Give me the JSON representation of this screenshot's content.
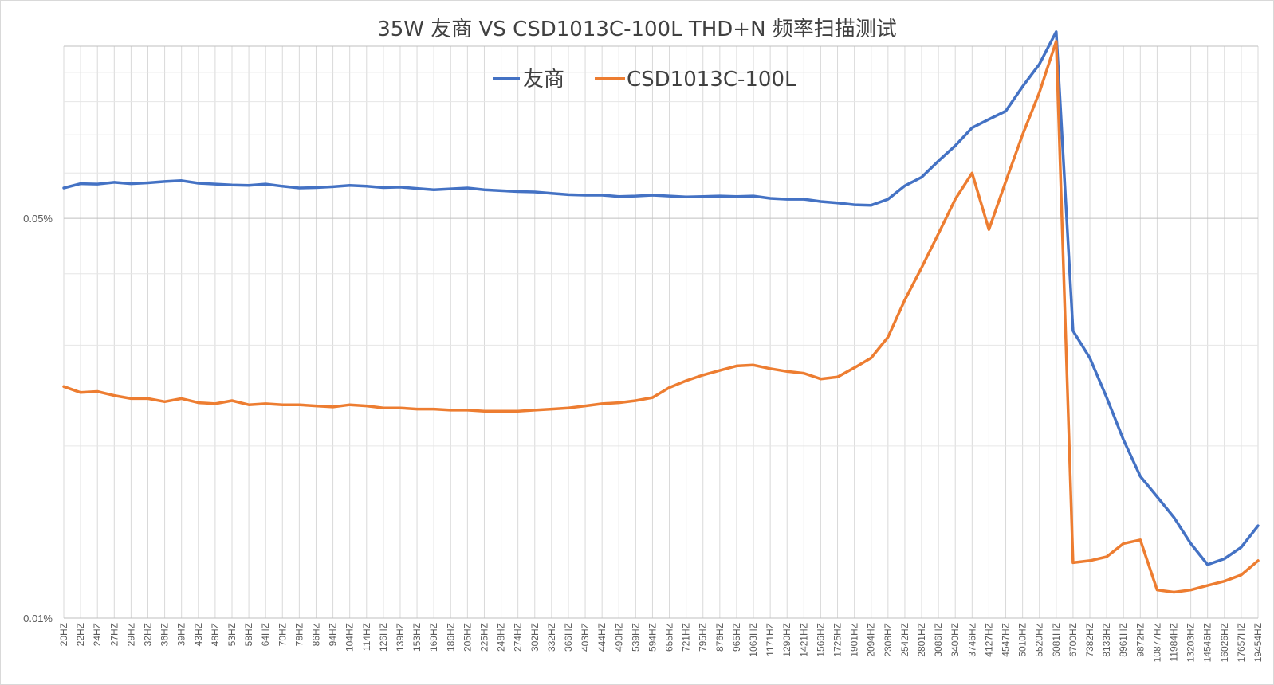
{
  "chart_data": {
    "type": "line",
    "title": "35W 友商 VS CSD1013C-100L THD+N 频率扫描测试",
    "xlabel": "",
    "ylabel": "",
    "y_scale": "log",
    "ylim": [
      0.01,
      0.1
    ],
    "y_ticks": [
      "0.05%",
      "0.01%"
    ],
    "grid": true,
    "legend_position": "top",
    "categories": [
      "20HZ",
      "22HZ",
      "24HZ",
      "27HZ",
      "29HZ",
      "32HZ",
      "36HZ",
      "39HZ",
      "43HZ",
      "48HZ",
      "53HZ",
      "58HZ",
      "64HZ",
      "70HZ",
      "78HZ",
      "86HZ",
      "94HZ",
      "104HZ",
      "114HZ",
      "126HZ",
      "139HZ",
      "153HZ",
      "169HZ",
      "186HZ",
      "205HZ",
      "225HZ",
      "248HZ",
      "274HZ",
      "302HZ",
      "332HZ",
      "366HZ",
      "403HZ",
      "444HZ",
      "490HZ",
      "539HZ",
      "594HZ",
      "655HZ",
      "721HZ",
      "795HZ",
      "876HZ",
      "965HZ",
      "1063HZ",
      "1171HZ",
      "1290HZ",
      "1421HZ",
      "1566HZ",
      "1725HZ",
      "1901HZ",
      "2094HZ",
      "2308HZ",
      "2542HZ",
      "2801HZ",
      "3086HZ",
      "3400HZ",
      "3746HZ",
      "4127HZ",
      "4547HZ",
      "5010HZ",
      "5520HZ",
      "6081HZ",
      "6700HZ",
      "7382HZ",
      "8133HZ",
      "8961HZ",
      "9872HZ",
      "10877HZ",
      "11984HZ",
      "13203HZ",
      "14546HZ",
      "16026HZ",
      "17657HZ",
      "19454HZ"
    ],
    "series": [
      {
        "name": "友商",
        "color": "#4472c4",
        "values": [
          0.0565,
          0.0575,
          0.0574,
          0.0578,
          0.0575,
          0.0577,
          0.058,
          0.0582,
          0.0576,
          0.0574,
          0.0572,
          0.0571,
          0.0574,
          0.0569,
          0.0565,
          0.0566,
          0.0568,
          0.0571,
          0.0569,
          0.0566,
          0.0567,
          0.0564,
          0.0561,
          0.0563,
          0.0565,
          0.0561,
          0.0559,
          0.0557,
          0.0556,
          0.0553,
          0.055,
          0.0549,
          0.0549,
          0.0546,
          0.0547,
          0.0549,
          0.0547,
          0.0545,
          0.0546,
          0.0547,
          0.0546,
          0.0547,
          0.0542,
          0.054,
          0.054,
          0.0535,
          0.0532,
          0.0528,
          0.0527,
          0.054,
          0.057,
          0.059,
          0.063,
          0.067,
          0.072,
          0.0745,
          0.077,
          0.085,
          0.093,
          0.106,
          0.0318,
          0.0285,
          0.0243,
          0.0205,
          0.0177,
          0.0163,
          0.015,
          0.0135,
          0.0124,
          0.0127,
          0.0133,
          0.0145
        ]
      },
      {
        "name": "CSD1013C-100L",
        "color": "#ed7d31",
        "values": [
          0.0254,
          0.0248,
          0.0249,
          0.0245,
          0.0242,
          0.0242,
          0.0239,
          0.0242,
          0.0238,
          0.0237,
          0.024,
          0.0236,
          0.0237,
          0.0236,
          0.0236,
          0.0235,
          0.0234,
          0.0236,
          0.0235,
          0.0233,
          0.0233,
          0.0232,
          0.0232,
          0.0231,
          0.0231,
          0.023,
          0.023,
          0.023,
          0.0231,
          0.0232,
          0.0233,
          0.0235,
          0.0237,
          0.0238,
          0.024,
          0.0243,
          0.0253,
          0.026,
          0.0266,
          0.0271,
          0.0276,
          0.0277,
          0.0273,
          0.027,
          0.0268,
          0.0262,
          0.0264,
          0.0274,
          0.0285,
          0.031,
          0.036,
          0.041,
          0.047,
          0.054,
          0.06,
          0.0478,
          0.058,
          0.07,
          0.083,
          0.102,
          0.0125,
          0.0126,
          0.0128,
          0.0135,
          0.0137,
          0.0112,
          0.0111,
          0.0112,
          0.0114,
          0.0116,
          0.0119,
          0.0126
        ]
      }
    ]
  }
}
